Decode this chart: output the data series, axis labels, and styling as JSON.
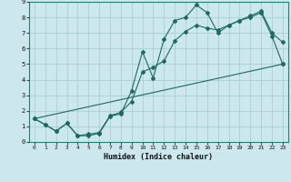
{
  "title": "",
  "xlabel": "Humidex (Indice chaleur)",
  "xlim": [
    -0.5,
    23.5
  ],
  "ylim": [
    0,
    9
  ],
  "xticks": [
    0,
    1,
    2,
    3,
    4,
    5,
    6,
    7,
    8,
    9,
    10,
    11,
    12,
    13,
    14,
    15,
    16,
    17,
    18,
    19,
    20,
    21,
    22,
    23
  ],
  "yticks": [
    0,
    1,
    2,
    3,
    4,
    5,
    6,
    7,
    8,
    9
  ],
  "background_color": "#cce8ee",
  "line_color": "#1a6b5e",
  "grid_color": "#aacdd4",
  "line1_x": [
    0,
    1,
    2,
    3,
    4,
    5,
    6,
    7,
    8,
    9,
    10,
    11,
    12,
    13,
    14,
    15,
    16,
    17,
    18,
    19,
    20,
    21,
    22,
    23
  ],
  "line1_y": [
    1.5,
    1.1,
    0.7,
    1.2,
    0.4,
    0.4,
    0.55,
    1.65,
    1.8,
    3.3,
    5.8,
    4.1,
    6.6,
    7.8,
    8.0,
    8.8,
    8.3,
    7.0,
    7.5,
    7.8,
    8.1,
    8.4,
    7.0,
    6.4
  ],
  "line2_x": [
    0,
    1,
    2,
    3,
    4,
    5,
    6,
    7,
    8,
    9,
    10,
    11,
    12,
    13,
    14,
    15,
    16,
    17,
    18,
    19,
    20,
    21,
    22,
    23
  ],
  "line2_y": [
    1.5,
    1.1,
    0.7,
    1.2,
    0.4,
    0.5,
    0.6,
    1.7,
    1.9,
    2.6,
    4.5,
    4.8,
    5.2,
    6.5,
    7.1,
    7.5,
    7.3,
    7.2,
    7.5,
    7.8,
    8.0,
    8.3,
    6.8,
    5.0
  ],
  "line3_x": [
    0,
    23
  ],
  "line3_y": [
    1.5,
    5.0
  ]
}
